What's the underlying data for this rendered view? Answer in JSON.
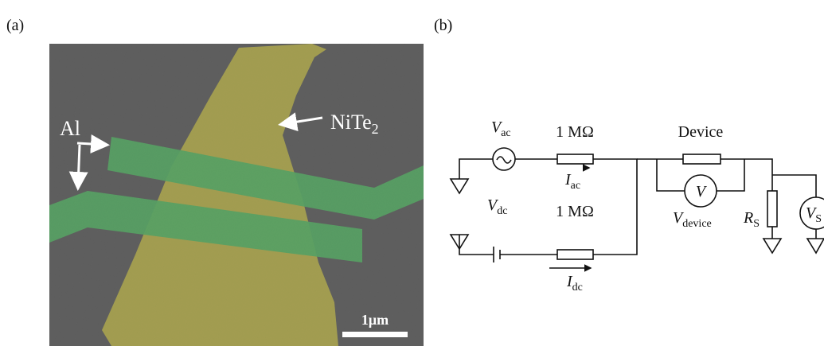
{
  "panel_a": {
    "label": "(a)",
    "al_label": "Al",
    "flake_label": {
      "main": "NiTe",
      "sub": "2"
    },
    "scale_bar": "1μm"
  },
  "panel_b": {
    "label": "(b)",
    "vac": {
      "main": "V",
      "sub": "ac"
    },
    "r_ac": "1 MΩ",
    "iac": {
      "main": "I",
      "sub": "ac"
    },
    "vdc": {
      "main": "V",
      "sub": "dc"
    },
    "r_dc": "1 MΩ",
    "idc": {
      "main": "I",
      "sub": "dc"
    },
    "device": "Device",
    "voltmeter": "V",
    "vdevice": {
      "main": "V",
      "sub": "device"
    },
    "rs": {
      "main": "R",
      "sub": "S"
    },
    "vs": {
      "main": "V",
      "sub": "S"
    }
  }
}
